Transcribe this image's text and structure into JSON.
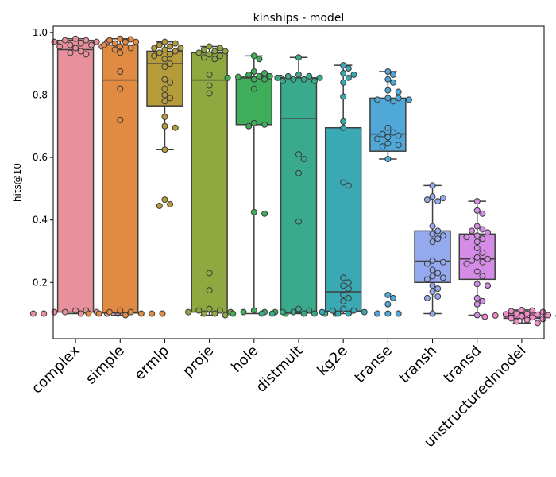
{
  "chart_data": {
    "type": "box-swarm",
    "title": "kinships - model",
    "xlabel": "",
    "ylabel": "hits@10",
    "ylim": [
      0.02,
      1.02
    ],
    "yticks": [
      "0.2",
      "0.4",
      "0.6",
      "0.8",
      "1.0"
    ],
    "categories": [
      "complex",
      "simple",
      "ermlp",
      "proje",
      "hole",
      "distmult",
      "kg2e",
      "transe",
      "transh",
      "transd",
      "unstructuredmodel"
    ],
    "series": [
      {
        "category": "complex",
        "color": "#e8909c",
        "box": {
          "whislo": 0.1,
          "q1": 0.105,
          "med": 0.945,
          "q3": 0.975,
          "whishi": 0.98
        },
        "points": [
          0.98,
          0.975,
          0.97,
          0.97,
          0.965,
          0.96,
          0.96,
          0.955,
          0.955,
          0.95,
          0.94,
          0.935,
          0.93,
          0.975,
          0.97,
          0.11,
          0.105,
          0.105,
          0.1,
          0.1,
          0.1,
          0.1,
          0.1,
          0.105,
          0.11
        ]
      },
      {
        "category": "simple",
        "color": "#e08a42",
        "box": {
          "whislo": 0.095,
          "q1": 0.102,
          "med": 0.848,
          "q3": 0.96,
          "whishi": 0.98
        },
        "points": [
          0.98,
          0.978,
          0.975,
          0.97,
          0.97,
          0.965,
          0.96,
          0.955,
          0.95,
          0.945,
          0.935,
          0.875,
          0.82,
          0.72,
          0.11,
          0.105,
          0.1,
          0.1,
          0.1,
          0.1,
          0.095,
          0.1,
          0.105
        ]
      },
      {
        "category": "ermlp",
        "color": "#b59b3a",
        "box": {
          "whislo": 0.625,
          "q1": 0.765,
          "med": 0.9,
          "q3": 0.94,
          "whishi": 0.97
        },
        "points": [
          0.97,
          0.965,
          0.96,
          0.955,
          0.95,
          0.95,
          0.945,
          0.94,
          0.935,
          0.93,
          0.925,
          0.915,
          0.9,
          0.89,
          0.85,
          0.84,
          0.82,
          0.8,
          0.79,
          0.78,
          0.73,
          0.7,
          0.695,
          0.625,
          0.465,
          0.45,
          0.445
        ]
      },
      {
        "category": "proje",
        "color": "#8fa840",
        "box": {
          "whislo": 0.095,
          "q1": 0.105,
          "med": 0.848,
          "q3": 0.935,
          "whishi": 0.955
        },
        "points": [
          0.955,
          0.95,
          0.945,
          0.94,
          0.94,
          0.935,
          0.93,
          0.925,
          0.92,
          0.915,
          0.865,
          0.83,
          0.805,
          0.23,
          0.175,
          0.115,
          0.11,
          0.11,
          0.105,
          0.105,
          0.1,
          0.1,
          0.095
        ]
      },
      {
        "category": "hole",
        "color": "#3fae5a",
        "box": {
          "whislo": 0.1,
          "q1": 0.705,
          "med": 0.855,
          "q3": 0.86,
          "whishi": 0.925
        },
        "points": [
          0.925,
          0.915,
          0.875,
          0.87,
          0.865,
          0.86,
          0.86,
          0.858,
          0.855,
          0.855,
          0.85,
          0.85,
          0.82,
          0.71,
          0.705,
          0.7,
          0.425,
          0.42,
          0.11,
          0.105,
          0.105,
          0.105,
          0.1,
          0.1
        ]
      },
      {
        "category": "distmult",
        "color": "#3aaa8c",
        "box": {
          "whislo": 0.1,
          "q1": 0.102,
          "med": 0.725,
          "q3": 0.855,
          "whishi": 0.92
        },
        "points": [
          0.92,
          0.865,
          0.86,
          0.86,
          0.855,
          0.855,
          0.85,
          0.85,
          0.845,
          0.845,
          0.61,
          0.595,
          0.55,
          0.395,
          0.115,
          0.11,
          0.105,
          0.105,
          0.1,
          0.1,
          0.1,
          0.1,
          0.1,
          0.1
        ]
      },
      {
        "category": "kg2e",
        "color": "#3aa9b4",
        "box": {
          "whislo": 0.1,
          "q1": 0.108,
          "med": 0.17,
          "q3": 0.695,
          "whishi": 0.895
        },
        "points": [
          0.895,
          0.885,
          0.87,
          0.865,
          0.855,
          0.84,
          0.795,
          0.715,
          0.695,
          0.52,
          0.51,
          0.215,
          0.2,
          0.19,
          0.18,
          0.16,
          0.15,
          0.14,
          0.115,
          0.11,
          0.11,
          0.105,
          0.105,
          0.1,
          0.1
        ]
      },
      {
        "category": "transe",
        "color": "#4fa8d8",
        "box": {
          "whislo": 0.595,
          "q1": 0.62,
          "med": 0.675,
          "q3": 0.79,
          "whishi": 0.875
        },
        "points": [
          0.875,
          0.865,
          0.85,
          0.84,
          0.815,
          0.81,
          0.79,
          0.79,
          0.785,
          0.785,
          0.78,
          0.695,
          0.68,
          0.675,
          0.67,
          0.665,
          0.66,
          0.645,
          0.64,
          0.635,
          0.595,
          0.16,
          0.15,
          0.13,
          0.1,
          0.1,
          0.1
        ]
      },
      {
        "category": "transh",
        "color": "#95aaee",
        "box": {
          "whislo": 0.1,
          "q1": 0.2,
          "med": 0.268,
          "q3": 0.365,
          "whishi": 0.51
        },
        "points": [
          0.51,
          0.475,
          0.47,
          0.465,
          0.46,
          0.38,
          0.365,
          0.355,
          0.35,
          0.34,
          0.33,
          0.27,
          0.265,
          0.26,
          0.24,
          0.23,
          0.22,
          0.215,
          0.21,
          0.19,
          0.18,
          0.17,
          0.155,
          0.15,
          0.1
        ]
      },
      {
        "category": "transd",
        "color": "#d48ce6",
        "box": {
          "whislo": 0.095,
          "q1": 0.21,
          "med": 0.275,
          "q3": 0.355,
          "whishi": 0.46
        },
        "points": [
          0.46,
          0.43,
          0.42,
          0.38,
          0.37,
          0.365,
          0.36,
          0.35,
          0.345,
          0.34,
          0.33,
          0.31,
          0.295,
          0.28,
          0.275,
          0.27,
          0.265,
          0.26,
          0.235,
          0.22,
          0.195,
          0.19,
          0.15,
          0.14,
          0.13,
          0.095
        ]
      },
      {
        "category": "unstructuredmodel",
        "color": "#f08ac8",
        "box": {
          "whislo": 0.07,
          "q1": 0.085,
          "med": 0.095,
          "q3": 0.102,
          "whishi": 0.112
        },
        "points": [
          0.112,
          0.11,
          0.108,
          0.105,
          0.1,
          0.1,
          0.098,
          0.097,
          0.095,
          0.094,
          0.093,
          0.092,
          0.09,
          0.09,
          0.088,
          0.085,
          0.083,
          0.08,
          0.075,
          0.07
        ]
      }
    ]
  }
}
